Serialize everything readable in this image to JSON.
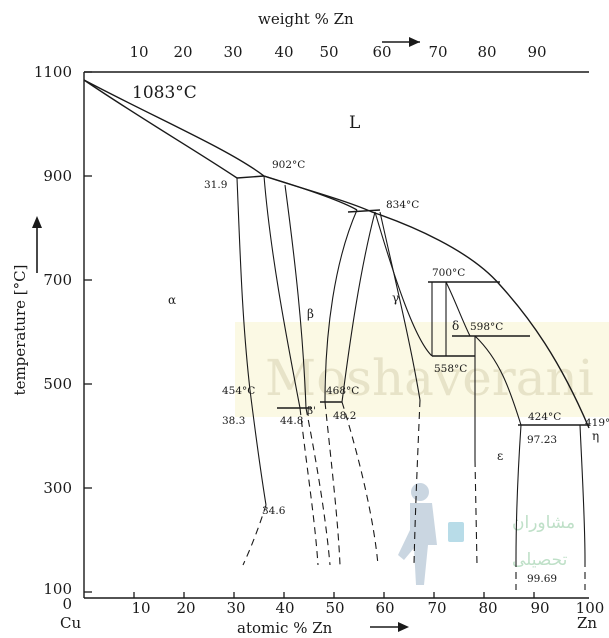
{
  "diagram": {
    "top_axis": {
      "title": "weight % Zn",
      "ticks": [
        "10",
        "20",
        "30",
        "40",
        "50",
        "60",
        "70",
        "80",
        "90"
      ]
    },
    "bottom_axis": {
      "title": "atomic % Zn",
      "ticks": [
        "10",
        "20",
        "30",
        "40",
        "50",
        "60",
        "70",
        "80",
        "90",
        "100"
      ],
      "left_element": "Cu",
      "right_element": "Zn"
    },
    "left_axis": {
      "title": "temperature [°C]",
      "ticks": [
        "1100",
        "900",
        "700",
        "500",
        "300",
        "100",
        "0"
      ]
    },
    "phases": {
      "liquid": "L",
      "alpha": "α",
      "beta": "β",
      "beta_prime": "β'",
      "gamma": "γ",
      "delta": "δ",
      "epsilon": "ε",
      "eta": "η"
    },
    "annotations": {
      "t1083": "1083°C",
      "t902": "902°C",
      "t834": "834°C",
      "t700": "700°C",
      "t598": "598°C",
      "t558": "558°C",
      "t468": "468°C",
      "t454": "454°C",
      "t424": "424°C",
      "t419": "419°C",
      "c319": "31.9",
      "c383": "38.3",
      "c448": "44.8",
      "c482": "48.2",
      "c346": "34.6",
      "c9723": "97.23",
      "c9969": "99.69"
    }
  },
  "watermark": {
    "text": "Moshaverani",
    "arabic_line1": "مشاوران",
    "arabic_line2": "تحصیلی"
  }
}
